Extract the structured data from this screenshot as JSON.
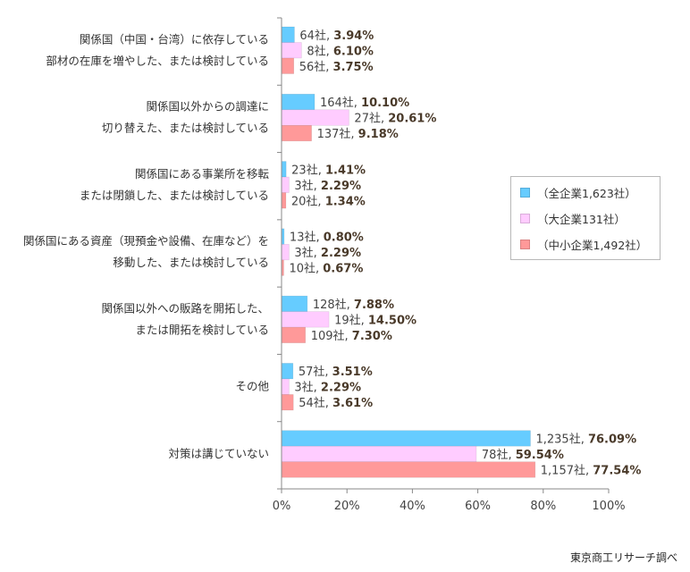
{
  "chart_data": {
    "type": "bar",
    "orientation": "horizontal",
    "categories": [
      [
        "関係国（中国・台湾）に依存している",
        "部材の在庫を増やした、または検討している"
      ],
      [
        "関係国以外からの調達に",
        "切り替えた、または検討している"
      ],
      [
        "関係国にある事業所を移転",
        "または閉鎖した、または検討している"
      ],
      [
        "関係国にある資産（現預金や設備、在庫など）を",
        "移動した、または検討している"
      ],
      [
        "関係国以外への販路を開拓した、",
        "または開拓を検討している"
      ],
      [
        "その他"
      ],
      [
        "対策は講じていない"
      ]
    ],
    "series": [
      {
        "name": "（全企業1,623社）",
        "color": "#66ccff",
        "values": [
          3.94,
          10.1,
          1.41,
          0.8,
          7.88,
          3.51,
          76.09
        ],
        "counts": [
          "64社",
          "164社",
          "23社",
          "13社",
          "128社",
          "57社",
          "1,235社"
        ],
        "pct_labels": [
          "3.94%",
          "10.10%",
          "1.41%",
          "0.80%",
          "7.88%",
          "3.51%",
          "76.09%"
        ]
      },
      {
        "name": "（大企業131社）",
        "color": "#ffccff",
        "values": [
          6.1,
          20.61,
          2.29,
          2.29,
          14.5,
          2.29,
          59.54
        ],
        "counts": [
          "8社",
          "27社",
          "3社",
          "3社",
          "19社",
          "3社",
          "78社"
        ],
        "pct_labels": [
          "6.10%",
          "20.61%",
          "2.29%",
          "2.29%",
          "14.50%",
          "2.29%",
          "59.54%"
        ]
      },
      {
        "name": "（中小企業1,492社）",
        "color": "#ff9999",
        "values": [
          3.75,
          9.18,
          1.34,
          0.67,
          7.3,
          3.61,
          77.54
        ],
        "counts": [
          "56社",
          "137社",
          "20社",
          "10社",
          "109社",
          "54社",
          "1,157社"
        ],
        "pct_labels": [
          "3.75%",
          "9.18%",
          "1.34%",
          "0.67%",
          "7.30%",
          "3.61%",
          "77.54%"
        ]
      }
    ],
    "xlim": [
      0,
      100
    ],
    "x_ticks": [
      "0%",
      "20%",
      "40%",
      "60%",
      "80%",
      "100%"
    ],
    "grid": false,
    "legend_position": "right"
  },
  "source": "東京商工リサーチ調べ"
}
